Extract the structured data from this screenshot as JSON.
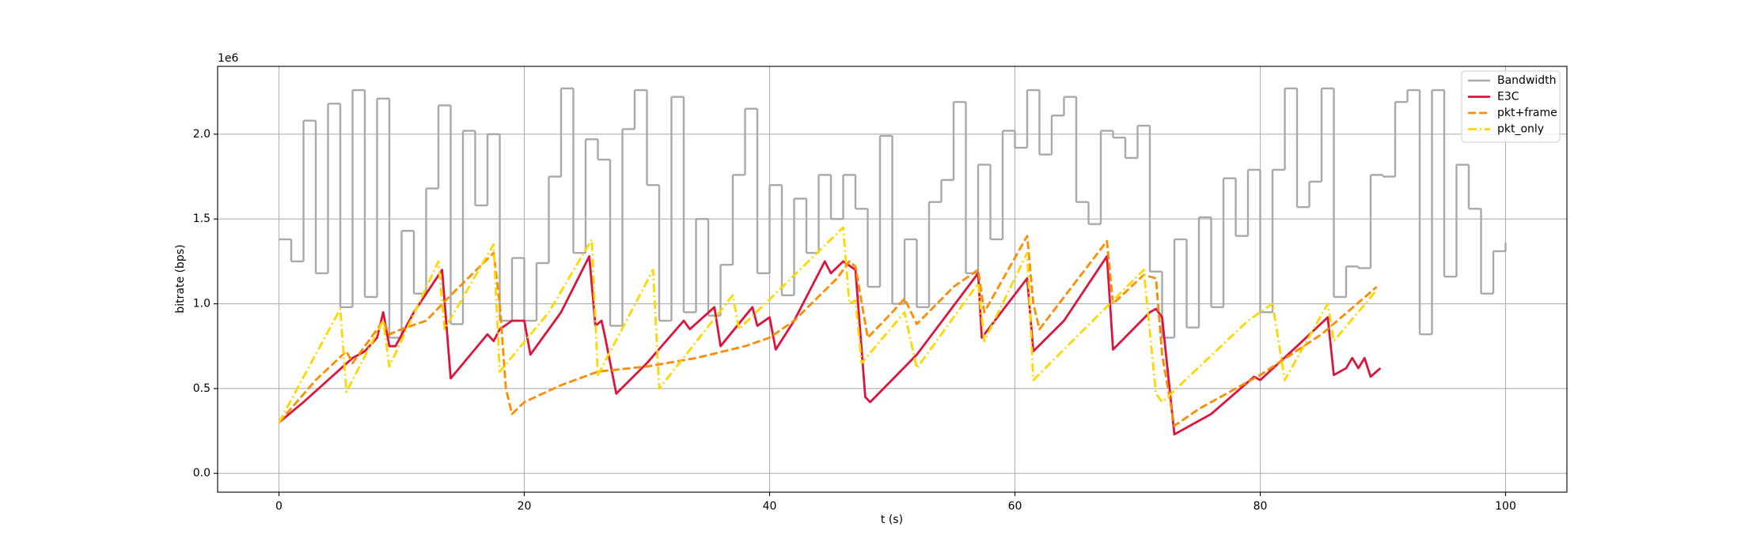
{
  "chart_data": {
    "type": "line",
    "x_label": "t (s)",
    "y_label": "bitrate (bps)",
    "y_offset_label": "1e6",
    "xlim": [
      -5,
      105
    ],
    "xticks": [
      0,
      20,
      40,
      60,
      80,
      100
    ],
    "ylim": [
      -111000,
      2400000
    ],
    "yticks": [
      {
        "value": 0,
        "label": "0.0"
      },
      {
        "value": 500000.0,
        "label": "0.5"
      },
      {
        "value": 1000000.0,
        "label": "1.0"
      },
      {
        "value": 1500000.0,
        "label": "1.5"
      },
      {
        "value": 2000000.0,
        "label": "2.0"
      }
    ],
    "grid": true,
    "legend": "upper right",
    "series": [
      {
        "name": "Bandwidth",
        "color": "#a9a9a9",
        "linestyle": "solid",
        "drawstyle": "steps-post",
        "x": [
          0,
          1,
          2,
          3,
          4,
          5,
          6,
          7,
          8,
          9,
          10,
          11,
          12,
          13,
          14,
          15,
          16,
          17,
          18,
          19,
          20,
          21,
          22,
          23,
          24,
          25,
          26,
          27,
          28,
          29,
          30,
          31,
          32,
          33,
          34,
          35,
          36,
          37,
          38,
          39,
          40,
          41,
          42,
          43,
          44,
          45,
          46,
          47,
          48,
          49,
          50,
          51,
          52,
          53,
          54,
          55,
          56,
          57,
          58,
          59,
          60,
          61,
          62,
          63,
          64,
          65,
          66,
          67,
          68,
          69,
          70,
          71,
          72,
          73,
          74,
          75,
          76,
          77,
          78,
          79,
          80,
          81,
          82,
          83,
          84,
          85,
          86,
          87,
          88,
          89,
          90,
          91,
          92,
          93,
          94,
          95,
          96,
          97,
          98,
          99,
          100
        ],
        "values": [
          1380000.0,
          1250000.0,
          2080000.0,
          1180000.0,
          2180000.0,
          980000.0,
          2260000.0,
          1040000.0,
          2210000.0,
          800000.0,
          1430000.0,
          1060000.0,
          1680000.0,
          2170000.0,
          880000.0,
          2020000.0,
          1580000.0,
          2000000.0,
          900000.0,
          1270000.0,
          900000.0,
          1240000.0,
          1750000.0,
          2270000.0,
          1300000.0,
          1970000.0,
          1850000.0,
          870000.0,
          2030000.0,
          2260000.0,
          1700000.0,
          900000.0,
          2220000.0,
          950000.0,
          1500000.0,
          930000.0,
          1230000.0,
          1760000.0,
          2150000.0,
          1180000.0,
          1700000.0,
          1050000.0,
          1620000.0,
          1300000.0,
          1760000.0,
          1500000.0,
          1760000.0,
          1560000.0,
          1100000.0,
          1990000.0,
          1000000.0,
          1380000.0,
          980000.0,
          1600000.0,
          1730000.0,
          2190000.0,
          1180000.0,
          1820000.0,
          1380000.0,
          2020000.0,
          1920000.0,
          2260000.0,
          1880000.0,
          2110000.0,
          2220000.0,
          1600000.0,
          1470000.0,
          2020000.0,
          1980000.0,
          1860000.0,
          2050000.0,
          1190000.0,
          800000.0,
          1380000.0,
          860000.0,
          1510000.0,
          980000.0,
          1740000.0,
          1400000.0,
          1790000.0,
          950000.0,
          1790000.0,
          2270000.0,
          1570000.0,
          1720000.0,
          2270000.0,
          1040000.0,
          1220000.0,
          1210000.0,
          1760000.0,
          1750000.0,
          2190000.0,
          2260000.0,
          820000.0,
          2260000.0,
          1160000.0,
          1820000.0,
          1560000.0,
          1060000.0,
          1310000.0,
          1360000.0
        ]
      },
      {
        "name": "E3C",
        "color": "#dc143c",
        "linestyle": "solid",
        "x": [
          0,
          2,
          4,
          6,
          7,
          8,
          8.5,
          9,
          9.5,
          11,
          13.3,
          14,
          17,
          17.5,
          18,
          19,
          20,
          20.5,
          23,
          25.3,
          25.8,
          26.3,
          26.6,
          27.5,
          30,
          33,
          33.5,
          35.5,
          36,
          38.6,
          39,
          40,
          40.5,
          42,
          44.5,
          45,
          46,
          47,
          47.8,
          48.2,
          52,
          57,
          57.3,
          61,
          61.5,
          64,
          67.5,
          68,
          71,
          71.5,
          72,
          73,
          76,
          79.5,
          80,
          83,
          85.5,
          86,
          87,
          87.5,
          88,
          88.5,
          89,
          89.8
        ],
        "values": [
          300000.0,
          420000.0,
          550000.0,
          680000.0,
          720000.0,
          800000.0,
          950000.0,
          750000.0,
          750000.0,
          950000.0,
          1200000.0,
          560000.0,
          820000.0,
          780000.0,
          850000.0,
          900000.0,
          900000.0,
          700000.0,
          950000.0,
          1280000.0,
          870000.0,
          900000.0,
          800000.0,
          470000.0,
          650000.0,
          900000.0,
          850000.0,
          980000.0,
          750000.0,
          980000.0,
          870000.0,
          920000.0,
          730000.0,
          900000.0,
          1250000.0,
          1180000.0,
          1250000.0,
          1200000.0,
          450000.0,
          420000.0,
          700000.0,
          1180000.0,
          800000.0,
          1150000.0,
          720000.0,
          900000.0,
          1280000.0,
          730000.0,
          950000.0,
          970000.0,
          920000.0,
          230000.0,
          350000.0,
          570000.0,
          550000.0,
          750000.0,
          920000.0,
          580000.0,
          620000.0,
          680000.0,
          620000.0,
          680000.0,
          570000.0,
          620000.0
        ]
      },
      {
        "name": "pkt+frame",
        "color": "#ff8c00",
        "linestyle": "dashed",
        "x": [
          0,
          3,
          5.5,
          6,
          8.5,
          9,
          10,
          12,
          14,
          17.5,
          18,
          18.5,
          19,
          20,
          23,
          26,
          30,
          34,
          38,
          40,
          42,
          45.5,
          46.5,
          47,
          48,
          50,
          51,
          52,
          55,
          57,
          57.5,
          61,
          61.5,
          62,
          67.5,
          68,
          70.5,
          71.5,
          72,
          73,
          75,
          80,
          85,
          89.5
        ],
        "values": [
          300000.0,
          550000.0,
          720000.0,
          650000.0,
          900000.0,
          820000.0,
          850000.0,
          900000.0,
          1050000.0,
          1300000.0,
          1000000.0,
          500000.0,
          350000.0,
          420000.0,
          520000.0,
          600000.0,
          630000.0,
          680000.0,
          750000.0,
          800000.0,
          900000.0,
          1150000.0,
          1250000.0,
          1220000.0,
          800000.0,
          950000.0,
          1030000.0,
          880000.0,
          1100000.0,
          1200000.0,
          950000.0,
          1400000.0,
          1000000.0,
          850000.0,
          1370000.0,
          1000000.0,
          1170000.0,
          1150000.0,
          700000.0,
          280000.0,
          380000.0,
          580000.0,
          820000.0,
          1100000.0
        ]
      },
      {
        "name": "pkt_only",
        "color": "#ffd700",
        "linestyle": "dashdot",
        "x": [
          0,
          5,
          5.5,
          8.5,
          9,
          13,
          13.5,
          17.5,
          18,
          22,
          25.5,
          26,
          30.5,
          31,
          37,
          37.5,
          46,
          46.5,
          47,
          47.5,
          51,
          52,
          57,
          57.5,
          61,
          61.5,
          70.5,
          71.5,
          72,
          79,
          81,
          82,
          85.5,
          86,
          89.5
        ],
        "values": [
          300000.0,
          970000.0,
          480000.0,
          900000.0,
          630000.0,
          1250000.0,
          850000.0,
          1350000.0,
          600000.0,
          950000.0,
          1380000.0,
          580000.0,
          1200000.0,
          500000.0,
          1050000.0,
          850000.0,
          1450000.0,
          1000000.0,
          1020000.0,
          650000.0,
          950000.0,
          620000.0,
          1120000.0,
          780000.0,
          1300000.0,
          550000.0,
          1200000.0,
          470000.0,
          420000.0,
          900000.0,
          1000000.0,
          550000.0,
          1000000.0,
          780000.0,
          1080000.0
        ]
      }
    ]
  }
}
